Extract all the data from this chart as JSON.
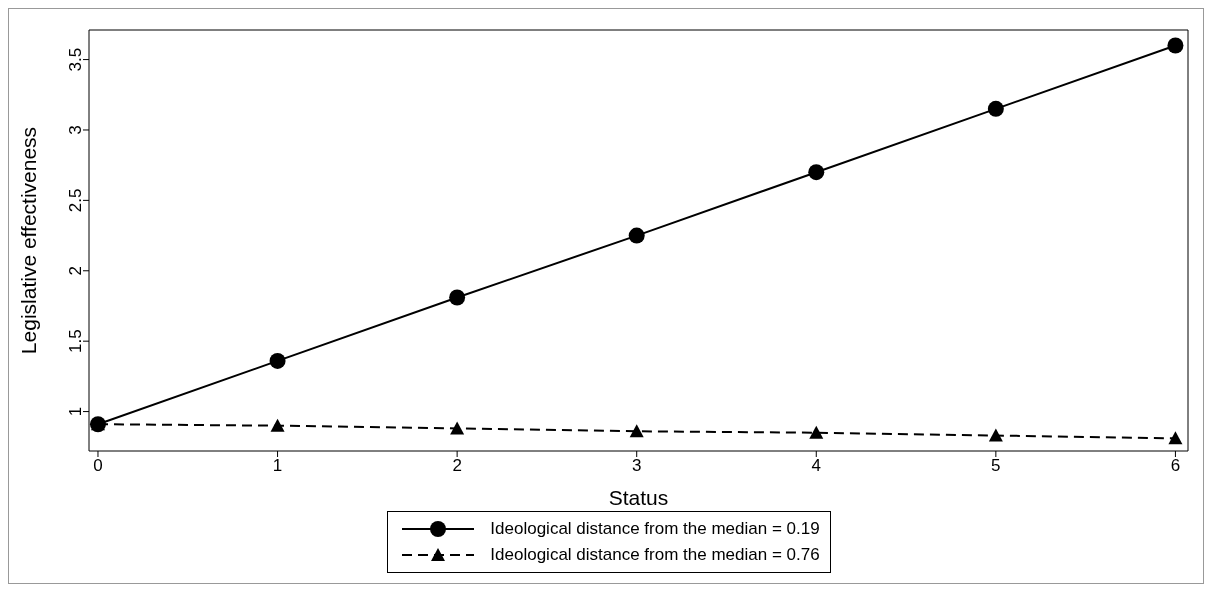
{
  "chart_data": {
    "type": "line",
    "xlabel": "Status",
    "ylabel": "Legislative effectiveness",
    "x": [
      0,
      1,
      2,
      3,
      4,
      5,
      6
    ],
    "series": [
      {
        "name": "Ideological distance from the median = 0.19",
        "color": "#000000",
        "marker": "circle",
        "line_style": "solid",
        "values": [
          0.91,
          1.36,
          1.81,
          2.25,
          2.7,
          3.15,
          3.6
        ]
      },
      {
        "name": "Ideological distance from the median = 0.76",
        "color": "#000000",
        "marker": "triangle",
        "line_style": "dashed",
        "values": [
          0.91,
          0.9,
          0.88,
          0.86,
          0.85,
          0.83,
          0.81
        ]
      }
    ],
    "xlim": [
      -0.05,
      6.07
    ],
    "xticks": [
      0,
      1,
      2,
      3,
      4,
      5,
      6
    ],
    "ylim": [
      0.72,
      3.71
    ],
    "yticks": [
      1,
      1.5,
      2,
      2.5,
      3,
      3.5
    ],
    "grid": false,
    "legend": "bottom"
  }
}
